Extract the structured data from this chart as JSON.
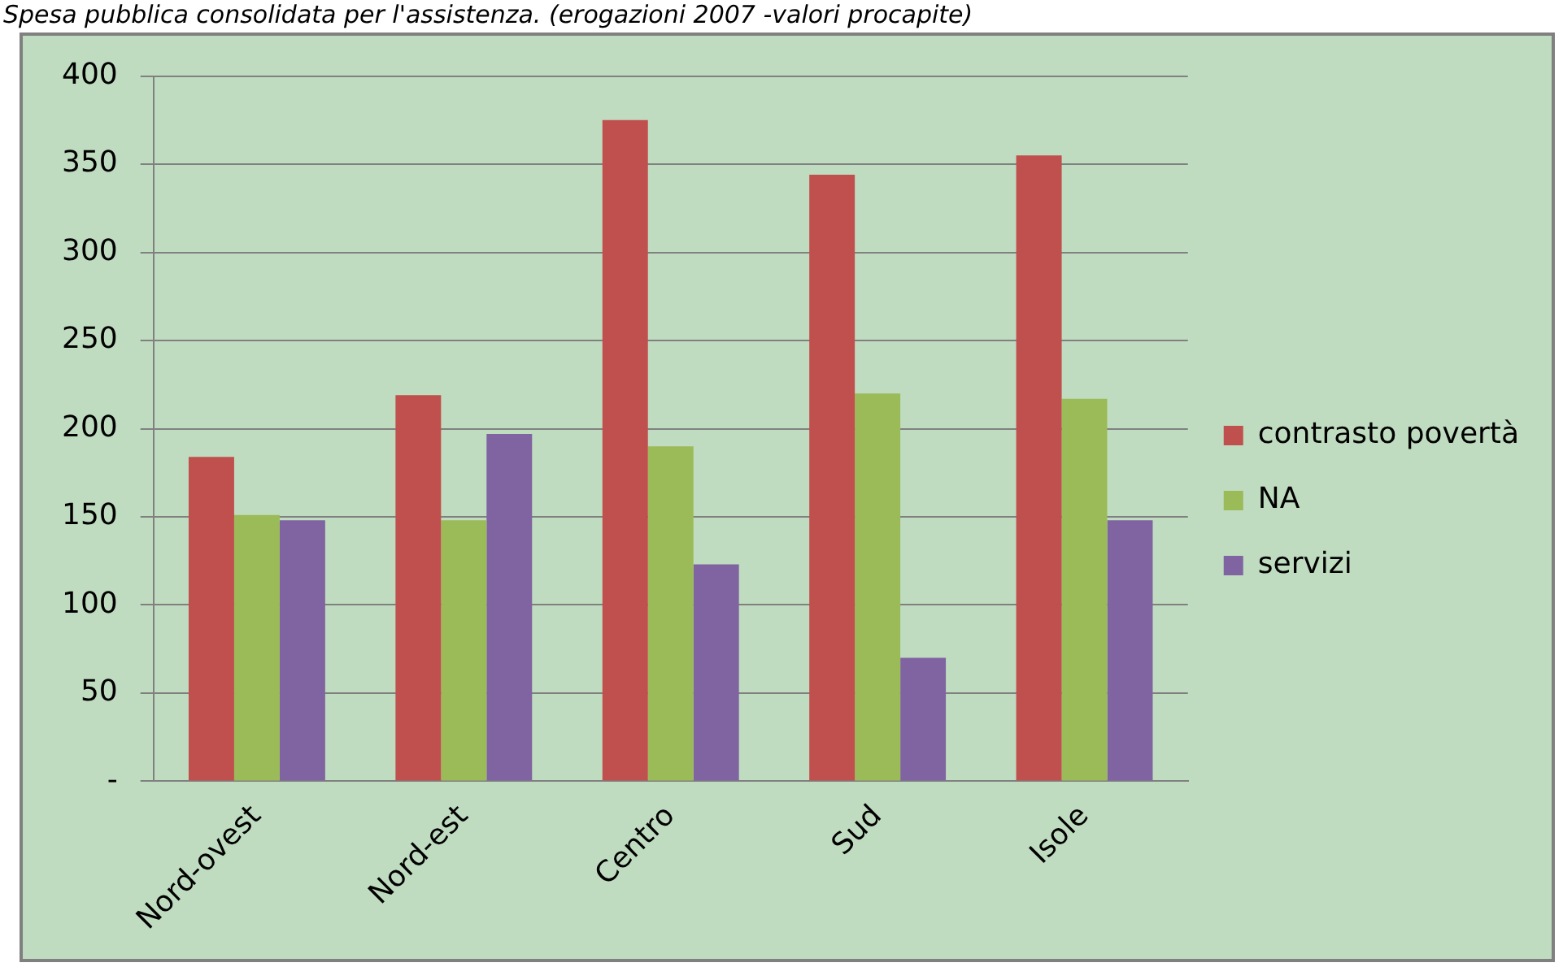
{
  "chart_data": {
    "type": "bar",
    "title": "Spesa pubblica consolidata per l'assistenza. (erogazioni 2007 -valori procapite)",
    "categories": [
      "Nord-ovest",
      "Nord-est",
      "Centro",
      "Sud",
      "Isole"
    ],
    "series": [
      {
        "name": "contrasto povertà",
        "color": "#c0504d",
        "values": [
          184,
          219,
          375,
          344,
          355
        ]
      },
      {
        "name": "NA",
        "color": "#9bbb59",
        "values": [
          151,
          148,
          190,
          220,
          217
        ]
      },
      {
        "name": "servizi",
        "color": "#8064a2",
        "values": [
          148,
          197,
          123,
          70,
          148
        ]
      }
    ],
    "ylim": [
      0,
      400
    ],
    "yticks": [
      {
        "value": 0,
        "label": "-"
      },
      50,
      100,
      150,
      200,
      250,
      300,
      350,
      400
    ],
    "grid": "y",
    "legend": "right"
  }
}
